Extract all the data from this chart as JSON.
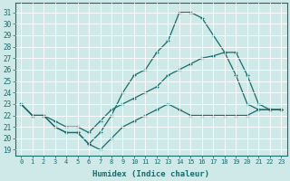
{
  "xlabel": "Humidex (Indice chaleur)",
  "background_color": "#cfe8e8",
  "grid_color": "#ffffff",
  "line_color": "#1a6b6b",
  "x_ticks": [
    0,
    1,
    2,
    3,
    4,
    5,
    6,
    7,
    8,
    9,
    10,
    11,
    12,
    13,
    14,
    15,
    16,
    17,
    18,
    19,
    20,
    21,
    22,
    23
  ],
  "y_ticks": [
    19,
    20,
    21,
    22,
    23,
    24,
    25,
    26,
    27,
    28,
    29,
    30,
    31
  ],
  "xlim": [
    -0.5,
    23.5
  ],
  "ylim": [
    18.5,
    31.8
  ],
  "line1_x": [
    0,
    1,
    2,
    3,
    4,
    5,
    6,
    7,
    8,
    9,
    10,
    11,
    12,
    13,
    14,
    15,
    16,
    17,
    18,
    19,
    20,
    21,
    22,
    23
  ],
  "line1_y": [
    23.0,
    22.0,
    22.0,
    21.0,
    20.5,
    20.5,
    19.5,
    19.0,
    20.0,
    21.0,
    21.5,
    22.0,
    22.5,
    23.0,
    22.5,
    22.0,
    22.0,
    22.0,
    22.0,
    22.0,
    22.0,
    22.5,
    22.5,
    22.5
  ],
  "line2_x": [
    0,
    1,
    2,
    3,
    4,
    5,
    6,
    7,
    8,
    9,
    10,
    11,
    12,
    13,
    14,
    15,
    16,
    17,
    18,
    19,
    20,
    21,
    22,
    23
  ],
  "line2_y": [
    23.0,
    22.0,
    22.0,
    21.0,
    20.5,
    20.5,
    19.5,
    20.5,
    22.0,
    24.0,
    25.5,
    26.0,
    27.5,
    28.5,
    31.0,
    31.0,
    30.5,
    29.0,
    27.5,
    27.5,
    25.5,
    23.0,
    22.5,
    22.5
  ],
  "line3_x": [
    0,
    1,
    2,
    3,
    4,
    5,
    6,
    7,
    8,
    9,
    10,
    11,
    12,
    13,
    14,
    15,
    16,
    17,
    18,
    19,
    20,
    21,
    22,
    23
  ],
  "line3_y": [
    23.0,
    22.0,
    22.0,
    21.5,
    21.0,
    21.0,
    20.5,
    21.5,
    22.5,
    23.0,
    23.5,
    24.0,
    24.5,
    25.5,
    26.0,
    26.5,
    27.0,
    27.2,
    27.5,
    25.5,
    23.0,
    22.5,
    22.5,
    22.5
  ]
}
